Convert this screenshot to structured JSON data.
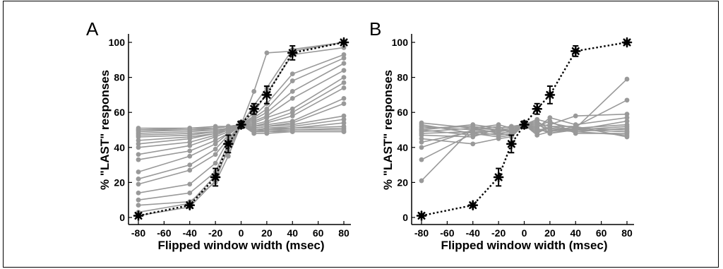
{
  "chart_data": [
    {
      "type": "line",
      "panel_label": "A",
      "xlabel": "Flipped window width (msec)",
      "ylabel": "% \"LAST\" responses",
      "xlim": [
        -80,
        80
      ],
      "ylim": [
        0,
        100
      ],
      "x": [
        -80,
        -40,
        -20,
        -10,
        0,
        10,
        20,
        40,
        80
      ],
      "xticks": [
        "-80",
        "-60",
        "-40",
        "-20",
        "0",
        "20",
        "40",
        "60",
        "80"
      ],
      "yticks": [
        "0",
        "20",
        "40",
        "60",
        "80",
        "100"
      ],
      "grid": false,
      "colors": {
        "individual": "#999999",
        "mean": "#000000"
      },
      "individual_series": [
        [
          1,
          6,
          21,
          40,
          53,
          72,
          94,
          95,
          100
        ],
        [
          3,
          8,
          24,
          38,
          53,
          64,
          74,
          96,
          100
        ],
        [
          7,
          9,
          20,
          35,
          53,
          60,
          71,
          93,
          97
        ],
        [
          10,
          14,
          26,
          42,
          53,
          58,
          65,
          82,
          93
        ],
        [
          14,
          19,
          31,
          44,
          53,
          57,
          62,
          78,
          91
        ],
        [
          19,
          27,
          36,
          45,
          53,
          56,
          60,
          72,
          88
        ],
        [
          22,
          30,
          39,
          47,
          53,
          55,
          58,
          68,
          84
        ],
        [
          26,
          35,
          42,
          48,
          53,
          54,
          57,
          62,
          80
        ],
        [
          33,
          38,
          44,
          48,
          53,
          53,
          55,
          60,
          77
        ],
        [
          36,
          41,
          46,
          49,
          53,
          52,
          54,
          58,
          74
        ],
        [
          40,
          43,
          47,
          50,
          53,
          52,
          53,
          55,
          68
        ],
        [
          42,
          45,
          48,
          50,
          53,
          51,
          52,
          54,
          65
        ],
        [
          44,
          46,
          48,
          51,
          53,
          51,
          52,
          53,
          58
        ],
        [
          46,
          47,
          49,
          51,
          53,
          50,
          51,
          52,
          56
        ],
        [
          47,
          48,
          49,
          51,
          53,
          50,
          51,
          51,
          54
        ],
        [
          48,
          49,
          50,
          51,
          53,
          50,
          50,
          51,
          52
        ],
        [
          49,
          50,
          50,
          51,
          53,
          49,
          50,
          50,
          51
        ],
        [
          50,
          50,
          51,
          52,
          53,
          49,
          49,
          50,
          50
        ],
        [
          50,
          51,
          51,
          52,
          53,
          49,
          49,
          49,
          49
        ],
        [
          51,
          51,
          52,
          52,
          53,
          48,
          48,
          49,
          49
        ]
      ],
      "mean_series": {
        "values": [
          1,
          7,
          23,
          42,
          53,
          62,
          70,
          94,
          100
        ],
        "err": [
          1,
          1,
          5,
          5,
          2,
          3,
          5,
          4,
          1
        ]
      }
    },
    {
      "type": "line",
      "panel_label": "B",
      "xlabel": "Flipped window width (msec)",
      "ylabel": "% \"LAST\" responses",
      "xlim": [
        -80,
        80
      ],
      "ylim": [
        0,
        100
      ],
      "x": [
        -80,
        -40,
        -20,
        -10,
        0,
        10,
        20,
        40,
        80
      ],
      "xticks": [
        "-80",
        "-60",
        "-40",
        "-20",
        "0",
        "20",
        "40",
        "60",
        "80"
      ],
      "yticks": [
        "0",
        "20",
        "40",
        "60",
        "80",
        "100"
      ],
      "grid": false,
      "colors": {
        "individual": "#999999",
        "mean": "#000000"
      },
      "individual_series": [
        [
          21,
          51,
          48,
          47,
          53,
          56,
          54,
          51,
          79
        ],
        [
          33,
          48,
          50,
          49,
          53,
          54,
          52,
          52,
          67
        ],
        [
          40,
          50,
          49,
          50,
          53,
          52,
          53,
          58,
          59
        ],
        [
          43,
          49,
          47,
          48,
          53,
          51,
          57,
          53,
          57
        ],
        [
          45,
          42,
          45,
          46,
          53,
          55,
          50,
          50,
          55
        ],
        [
          47,
          46,
          51,
          52,
          53,
          50,
          49,
          51,
          53
        ],
        [
          48,
          49,
          49,
          50,
          53,
          49,
          51,
          50,
          52
        ],
        [
          49,
          51,
          53,
          51,
          53,
          53,
          50,
          49,
          51
        ],
        [
          50,
          47,
          48,
          49,
          53,
          51,
          48,
          51,
          50
        ],
        [
          51,
          52,
          50,
          51,
          53,
          48,
          52,
          50,
          49
        ],
        [
          52,
          50,
          52,
          48,
          53,
          52,
          55,
          48,
          48
        ],
        [
          53,
          48,
          46,
          47,
          53,
          50,
          51,
          49,
          47
        ],
        [
          54,
          51,
          50,
          50,
          53,
          47,
          49,
          52,
          46
        ],
        [
          50,
          53,
          51,
          52,
          53,
          54,
          48,
          50,
          49
        ]
      ],
      "mean_series": {
        "values": [
          1,
          7,
          23,
          42,
          53,
          62,
          70,
          95,
          100
        ],
        "err": [
          1,
          1,
          5,
          5,
          2,
          3,
          5,
          3,
          1
        ]
      }
    }
  ]
}
